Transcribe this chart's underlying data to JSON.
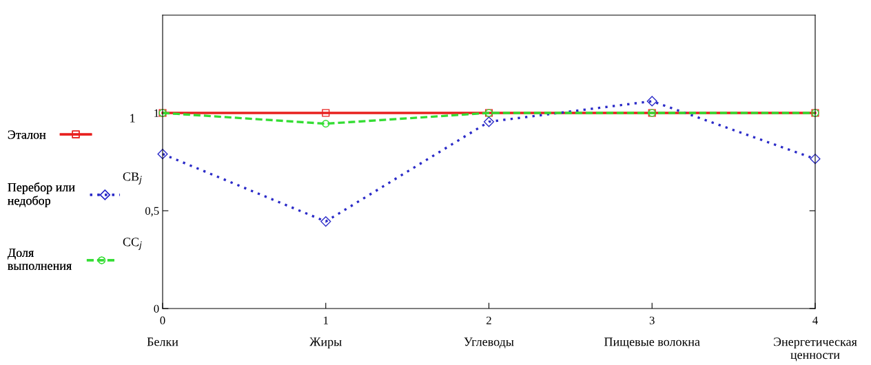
{
  "chart_data": {
    "type": "line",
    "x": [
      0,
      1,
      2,
      3,
      4
    ],
    "xlim": [
      0,
      4
    ],
    "xticks": [
      0,
      1,
      2,
      3,
      4
    ],
    "ylim": [
      0,
      1.5
    ],
    "yticks": [
      0,
      {
        "value": 0.5,
        "label": "0,5"
      },
      1
    ],
    "series": [
      {
        "name": "Эталон",
        "color": "#e8201e",
        "marker": "square",
        "line_style": "solid",
        "values": [
          1,
          1,
          1,
          1,
          1
        ]
      },
      {
        "name": "Перебор или\nнедобор",
        "color": "#2b2bc8",
        "marker": "diamond",
        "line_style": "dotted",
        "values": [
          0.79,
          0.445,
          0.955,
          1.06,
          0.765
        ]
      },
      {
        "name": "Доля\nвыполнения",
        "color": "#33dd33",
        "marker": "circle",
        "line_style": "dashed",
        "values": [
          1,
          0.945,
          1,
          1,
          1
        ]
      }
    ],
    "annotations": [
      "1",
      "CB$_{j}$",
      "CC$_{j}$",
      "Белки",
      "Жиры",
      "Углеводы",
      "Пищевые волокна",
      "Энергетическая\nценности"
    ],
    "legend": "left",
    "grid": false
  }
}
